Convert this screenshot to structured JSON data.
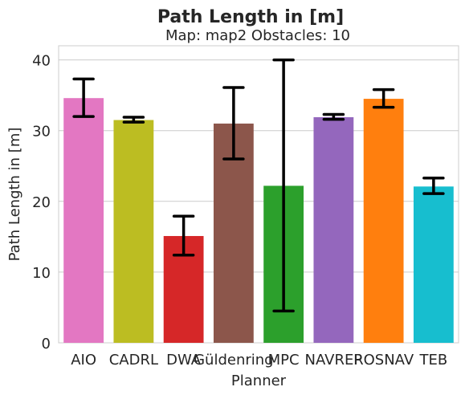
{
  "chart_data": {
    "type": "bar",
    "title": "Path Length in [m]",
    "subtitle": "Map: map2 Obstacles: 10",
    "xlabel": "Planner",
    "ylabel": "Path Length in [m]",
    "ylim": [
      0,
      42
    ],
    "yticks": [
      0,
      10,
      20,
      30,
      40
    ],
    "grid": true,
    "categories": [
      "AIO",
      "CADRL",
      "DWA",
      "Güldenring",
      "MPC",
      "NAVREP",
      "ROSNAV",
      "TEB"
    ],
    "values": [
      34.6,
      31.5,
      15.1,
      31.0,
      22.2,
      31.9,
      34.5,
      22.1
    ],
    "error_low": [
      32.0,
      31.2,
      12.4,
      26.0,
      4.5,
      31.6,
      33.3,
      21.1
    ],
    "error_high": [
      37.3,
      31.9,
      17.9,
      36.1,
      40.0,
      32.3,
      35.8,
      23.3
    ],
    "colors": [
      "#e377c2",
      "#bcbd22",
      "#d62728",
      "#8c564b",
      "#2ca02c",
      "#9467bd",
      "#ff7f0e",
      "#17becf"
    ]
  }
}
